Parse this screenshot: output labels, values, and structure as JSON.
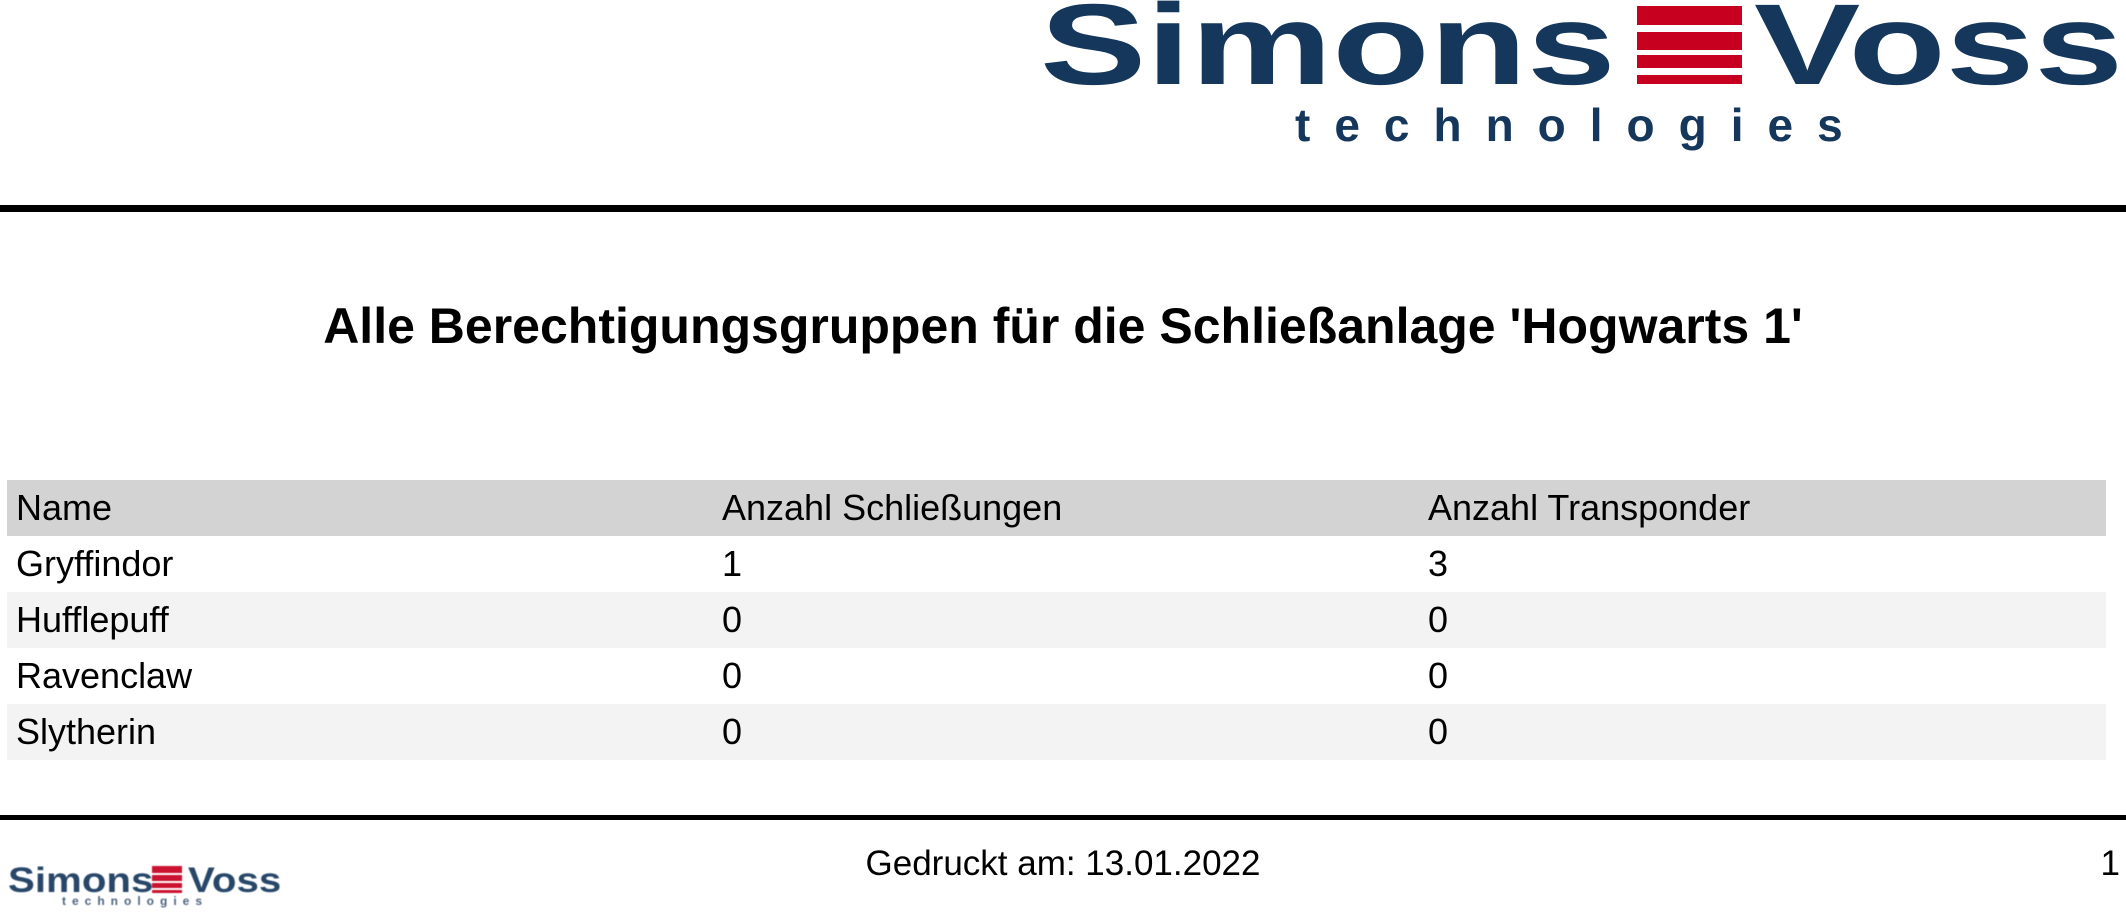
{
  "brand": {
    "word1": "Simons",
    "word2": "Voss",
    "tagline": "technologies",
    "colors": {
      "navy": "#15375c",
      "red": "#c70020"
    }
  },
  "title": "Alle Berechtigungsgruppen für die Schließanlage 'Hogwarts 1'",
  "table": {
    "columns": [
      "Name",
      "Anzahl Schließungen",
      "Anzahl Transponder"
    ],
    "rows": [
      {
        "name": "Gryffindor",
        "anzahl_schliessungen": "1",
        "anzahl_transponder": "3"
      },
      {
        "name": "Hufflepuff",
        "anzahl_schliessungen": "0",
        "anzahl_transponder": "0"
      },
      {
        "name": "Ravenclaw",
        "anzahl_schliessungen": "0",
        "anzahl_transponder": "0"
      },
      {
        "name": "Slytherin",
        "anzahl_schliessungen": "0",
        "anzahl_transponder": "0"
      }
    ]
  },
  "footer": {
    "printed_on": "Gedruckt am: 13.01.2022",
    "page_number": "1"
  }
}
